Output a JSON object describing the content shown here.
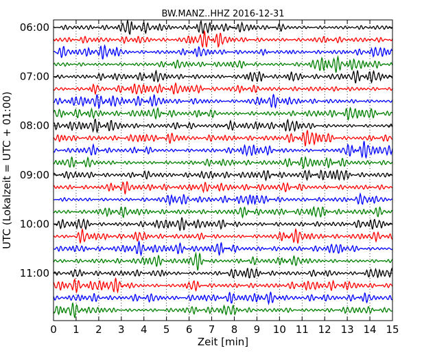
{
  "chart_data": {
    "type": "line",
    "title": "BW.MANZ..HHZ 2016-12-31",
    "xlabel": "Zeit  [min]",
    "ylabel": "UTC (Lokalzeit = UTC + 01:00)",
    "xlim": [
      0,
      15
    ],
    "x_ticks": [
      "0",
      "1",
      "2",
      "3",
      "4",
      "5",
      "6",
      "7",
      "8",
      "9",
      "10",
      "11",
      "12",
      "13",
      "14",
      "15"
    ],
    "y_ticks": [
      "06:00",
      "07:00",
      "08:00",
      "09:00",
      "10:00",
      "11:00"
    ],
    "y_tick_rows": [
      0,
      4,
      8,
      12,
      16,
      20
    ],
    "row_count": 24,
    "row_interval_min": 15,
    "first_row_start": "06:00",
    "grid": "vertical dotted lines at each minute",
    "series_colors": [
      "#000000",
      "#ff0000",
      "#0000ff",
      "#008000"
    ],
    "color_cycle_note": "traces cycle black, red, blue, green",
    "traces": [
      {
        "start": "06:00",
        "color": "#000000"
      },
      {
        "start": "06:15",
        "color": "#ff0000"
      },
      {
        "start": "06:30",
        "color": "#0000ff"
      },
      {
        "start": "06:45",
        "color": "#008000"
      },
      {
        "start": "07:00",
        "color": "#000000"
      },
      {
        "start": "07:15",
        "color": "#ff0000"
      },
      {
        "start": "07:30",
        "color": "#0000ff"
      },
      {
        "start": "07:45",
        "color": "#008000"
      },
      {
        "start": "08:00",
        "color": "#000000"
      },
      {
        "start": "08:15",
        "color": "#ff0000"
      },
      {
        "start": "08:30",
        "color": "#0000ff"
      },
      {
        "start": "08:45",
        "color": "#008000"
      },
      {
        "start": "09:00",
        "color": "#000000"
      },
      {
        "start": "09:15",
        "color": "#ff0000"
      },
      {
        "start": "09:30",
        "color": "#0000ff"
      },
      {
        "start": "09:45",
        "color": "#008000"
      },
      {
        "start": "10:00",
        "color": "#000000"
      },
      {
        "start": "10:15",
        "color": "#ff0000"
      },
      {
        "start": "10:30",
        "color": "#0000ff"
      },
      {
        "start": "10:45",
        "color": "#008000"
      },
      {
        "start": "11:00",
        "color": "#000000"
      },
      {
        "start": "11:15",
        "color": "#ff0000"
      },
      {
        "start": "11:30",
        "color": "#0000ff"
      },
      {
        "start": "11:45",
        "color": "#008000"
      }
    ]
  }
}
